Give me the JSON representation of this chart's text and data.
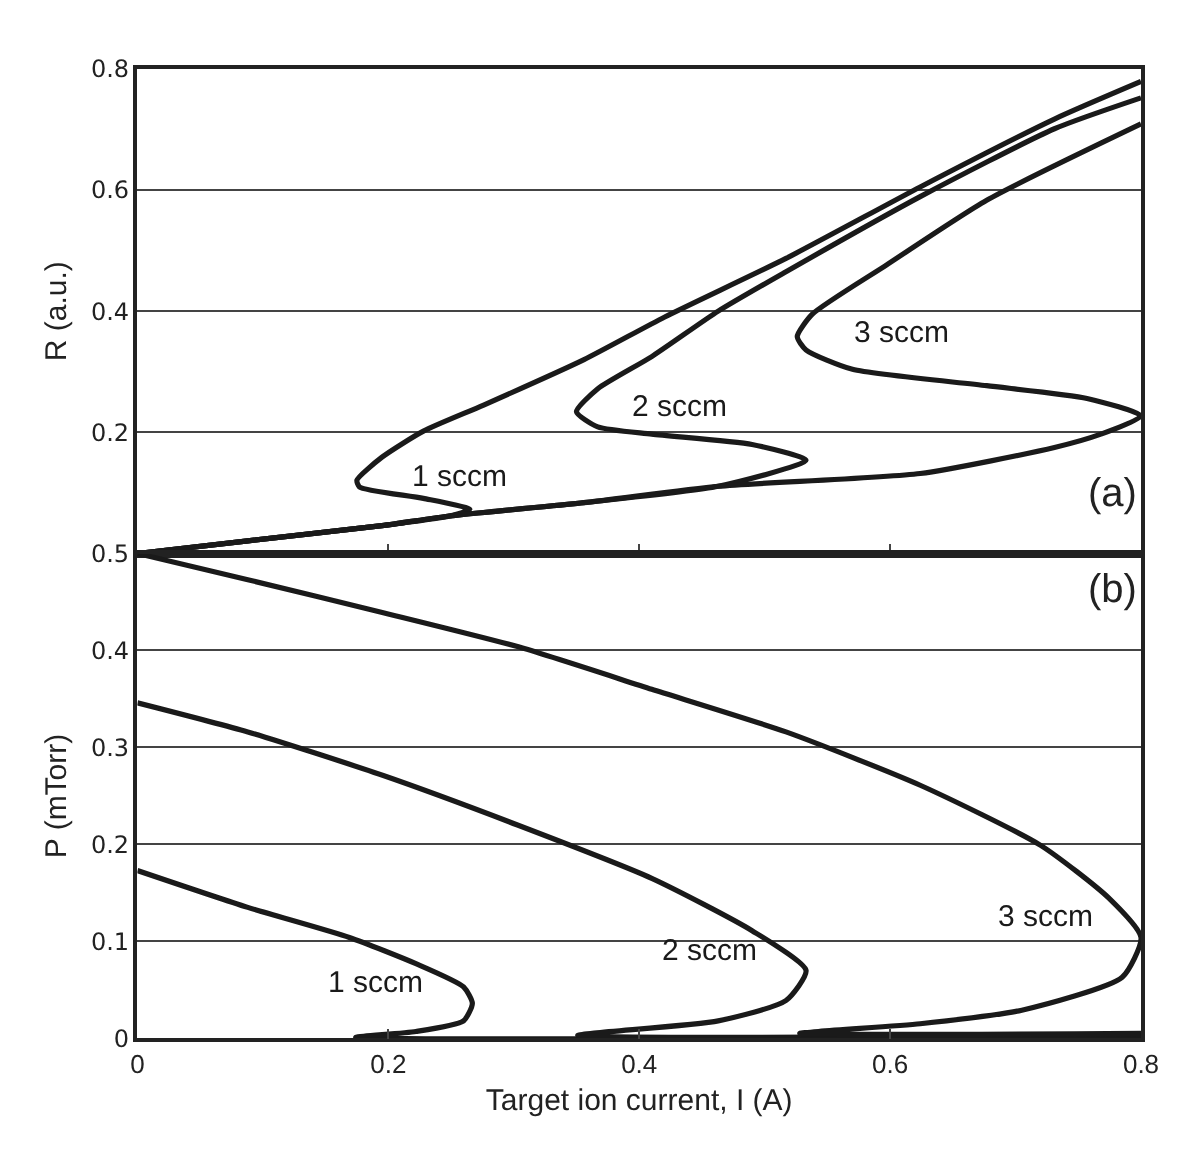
{
  "chart_data": [
    {
      "type": "line",
      "ylabel": "R (a.u.)",
      "xlim": [
        0,
        0.8
      ],
      "xticks": [
        {
          "value": 0,
          "label": null
        },
        {
          "value": 0.2,
          "label": null
        },
        {
          "value": 0.4,
          "label": null
        },
        {
          "value": 0.6,
          "label": null
        },
        {
          "value": 0.8,
          "label": null
        }
      ],
      "ylim": [
        0,
        0.8
      ],
      "yticks": [
        {
          "value": 0,
          "label": null
        },
        0.2,
        0.4,
        0.6,
        0.8
      ],
      "tick_labels": "y",
      "grid": "y",
      "legend": false,
      "line_style": "solid",
      "marker": "none",
      "annotations": [
        "(a)"
      ],
      "series": [
        {
          "name": "1 sccm",
          "color": "#1a1a1a",
          "x": [
            0,
            0.088,
            0.195,
            0.249,
            0.265,
            0.228,
            0.177,
            0.175,
            0.195,
            0.228,
            0.276,
            0.356,
            0.42,
            0.517,
            0.624,
            0.731,
            0.8
          ],
          "values": [
            0,
            0.021,
            0.046,
            0.062,
            0.073,
            0.091,
            0.11,
            0.121,
            0.159,
            0.202,
            0.245,
            0.32,
            0.39,
            0.487,
            0.605,
            0.717,
            0.779
          ]
        },
        {
          "name": "2 sccm",
          "color": "#1a1a1a",
          "x": [
            0,
            0.088,
            0.195,
            0.249,
            0.356,
            0.463,
            0.533,
            0.49,
            0.41,
            0.367,
            0.35,
            0.367,
            0.41,
            0.463,
            0.517,
            0.624,
            0.731,
            0.8
          ],
          "values": [
            0,
            0.021,
            0.046,
            0.062,
            0.084,
            0.111,
            0.154,
            0.18,
            0.197,
            0.209,
            0.234,
            0.272,
            0.325,
            0.4,
            0.465,
            0.589,
            0.701,
            0.752
          ]
        },
        {
          "name": "3 sccm",
          "color": "#1a1a1a",
          "x": [
            0,
            0.088,
            0.195,
            0.249,
            0.356,
            0.463,
            0.624,
            0.731,
            0.768,
            0.8,
            0.757,
            0.677,
            0.57,
            0.533,
            0.526,
            0.538,
            0.597,
            0.677,
            0.8
          ],
          "values": [
            0,
            0.021,
            0.046,
            0.062,
            0.084,
            0.111,
            0.132,
            0.175,
            0.197,
            0.227,
            0.256,
            0.277,
            0.304,
            0.336,
            0.358,
            0.395,
            0.476,
            0.583,
            0.709
          ]
        }
      ]
    },
    {
      "type": "line",
      "xlabel": "Target ion current, I (A)",
      "ylabel": "P (mTorr)",
      "xlim": [
        0,
        0.8
      ],
      "xticks": [
        0,
        0.2,
        0.4,
        0.6,
        0.8
      ],
      "ylim": [
        0,
        0.5
      ],
      "yticks": [
        0,
        0.1,
        0.2,
        0.3,
        0.4,
        0.5
      ],
      "grid": "y",
      "legend": false,
      "line_style": "solid",
      "marker": "none",
      "annotations": [
        "(b)"
      ],
      "series": [
        {
          "name": "1 sccm",
          "color": "#1a1a1a",
          "x": [
            0,
            0.088,
            0.169,
            0.222,
            0.26,
            0.267,
            0.26,
            0.222,
            0.174,
            0.8
          ],
          "values": [
            0.173,
            0.135,
            0.104,
            0.077,
            0.053,
            0.036,
            0.018,
            0.007,
            0.001,
            0.001
          ]
        },
        {
          "name": "2 sccm",
          "color": "#1a1a1a",
          "x": [
            0,
            0.088,
            0.196,
            0.303,
            0.41,
            0.49,
            0.533,
            0.517,
            0.463,
            0.351,
            0.8
          ],
          "values": [
            0.346,
            0.316,
            0.271,
            0.22,
            0.165,
            0.111,
            0.07,
            0.039,
            0.018,
            0.003,
            0.003
          ]
        },
        {
          "name": "3 sccm",
          "color": "#1a1a1a",
          "x": [
            0,
            0.088,
            0.196,
            0.303,
            0.41,
            0.517,
            0.624,
            0.72,
            0.774,
            0.8,
            0.785,
            0.705,
            0.624,
            0.528,
            0.8
          ],
          "values": [
            0.5,
            0.473,
            0.439,
            0.404,
            0.36,
            0.316,
            0.261,
            0.199,
            0.145,
            0.104,
            0.063,
            0.029,
            0.015,
            0.005,
            0.005
          ]
        }
      ]
    }
  ]
}
